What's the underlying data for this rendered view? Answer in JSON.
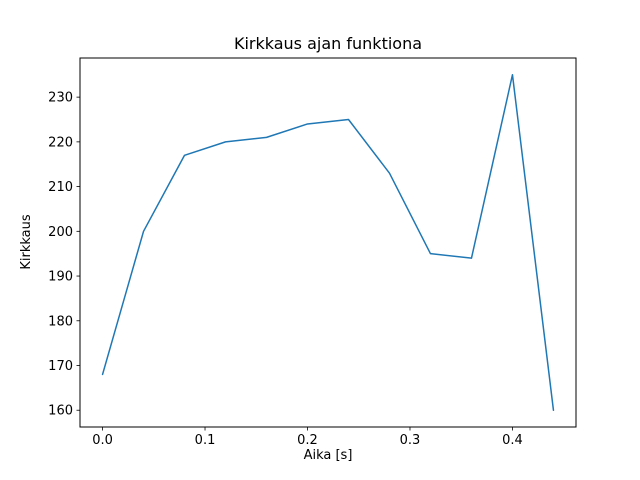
{
  "chart_data": {
    "type": "line",
    "title": "Kirkkaus ajan funktiona",
    "xlabel": "Aika [s]",
    "ylabel": "Kirkkaus",
    "x": [
      0.0,
      0.04,
      0.08,
      0.12,
      0.16,
      0.2,
      0.24,
      0.28,
      0.32,
      0.36,
      0.4,
      0.44
    ],
    "y": [
      168,
      200,
      217,
      220,
      221,
      224,
      225,
      213,
      195,
      194,
      235,
      160
    ],
    "xlim": [
      -0.022,
      0.462
    ],
    "ylim": [
      156.25,
      238.75
    ],
    "xticks": [
      0.0,
      0.1,
      0.2,
      0.3,
      0.4
    ],
    "xtick_labels": [
      "0.0",
      "0.1",
      "0.2",
      "0.3",
      "0.4"
    ],
    "yticks": [
      160,
      170,
      180,
      190,
      200,
      210,
      220,
      230
    ],
    "ytick_labels": [
      "160",
      "170",
      "180",
      "190",
      "200",
      "210",
      "220",
      "230"
    ],
    "line_color": "#1f77b4",
    "axis_color": "#000000",
    "grid": false,
    "legend": null
  }
}
